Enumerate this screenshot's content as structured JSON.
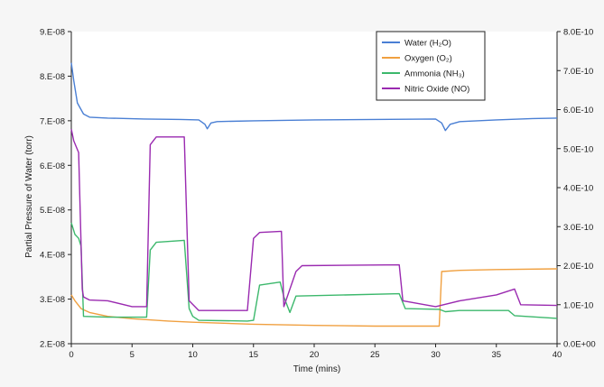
{
  "chart_data": {
    "type": "line",
    "xlabel": "Time (mins)",
    "ylabel": "Partial Pressure of Water (torr)",
    "xlim": [
      0,
      40
    ],
    "ylim_left": [
      2e-08,
      9e-08
    ],
    "ylim_right": [
      0.0,
      8e-10
    ],
    "x_ticks": [
      "0",
      "5",
      "10",
      "15",
      "20",
      "25",
      "30",
      "35",
      "40"
    ],
    "y_left_ticks": [
      "2.E-08",
      "3.E-08",
      "4.E-08",
      "5.E-08",
      "6.E-08",
      "7.E-08",
      "8.E-08",
      "9.E-08"
    ],
    "y_right_ticks": [
      "0.0E+00",
      "1.0E-10",
      "2.0E-10",
      "3.0E-10",
      "4.0E-10",
      "5.0E-10",
      "6.0E-10",
      "7.0E-10",
      "8.0E-10"
    ],
    "grid": false,
    "legend_position": "top-right",
    "series": [
      {
        "name": "Water (H₂O)",
        "color": "#4a7fd4",
        "axis": "left",
        "x": [
          0,
          0.2,
          0.5,
          1,
          1.5,
          3,
          6,
          9,
          10.5,
          11,
          11.2,
          11.5,
          12,
          15,
          20,
          25,
          30,
          30.5,
          30.8,
          31.2,
          32,
          35,
          38,
          40
        ],
        "y": [
          8.3e-08,
          7.9e-08,
          7.4e-08,
          7.15e-08,
          7.08e-08,
          7.06e-08,
          7.04e-08,
          7.03e-08,
          7.02e-08,
          6.92e-08,
          6.82e-08,
          6.95e-08,
          6.98e-08,
          7e-08,
          7.02e-08,
          7.03e-08,
          7.04e-08,
          6.95e-08,
          6.78e-08,
          6.92e-08,
          6.98e-08,
          7.02e-08,
          7.05e-08,
          7.06e-08
        ]
      },
      {
        "name": "Oxygen (O₂)",
        "color": "#f0a040",
        "axis": "right",
        "x": [
          0,
          0.3,
          0.8,
          1.5,
          3,
          5,
          8,
          10,
          12,
          15,
          20,
          25,
          30.3,
          30.5,
          32,
          35,
          40
        ],
        "y": [
          1.25e-10,
          1.1e-10,
          9e-11,
          8e-11,
          7e-11,
          6.4e-11,
          5.8e-11,
          5.5e-11,
          5.3e-11,
          5e-11,
          4.7e-11,
          4.5e-11,
          4.5e-11,
          1.85e-10,
          1.88e-10,
          1.9e-10,
          1.92e-10
        ]
      },
      {
        "name": "Ammonia (NH₃)",
        "color": "#3cb86c",
        "axis": "right",
        "x": [
          0,
          0.3,
          0.6,
          0.8,
          1.0,
          3,
          6.2,
          6.5,
          7.0,
          9.3,
          9.7,
          10,
          10.5,
          14.5,
          15,
          15.5,
          17.2,
          17.5,
          18,
          18.5,
          27,
          27.5,
          30.3,
          30.8,
          32,
          36,
          36.5,
          40
        ],
        "y": [
          3.1e-10,
          2.8e-10,
          2.7e-10,
          2.5e-10,
          7e-11,
          6.8e-11,
          6.8e-11,
          2.4e-10,
          2.6e-10,
          2.65e-10,
          9e-11,
          7e-11,
          6e-11,
          5.8e-11,
          6e-11,
          1.5e-10,
          1.58e-10,
          1.2e-10,
          8e-11,
          1.22e-10,
          1.28e-10,
          9e-11,
          8.8e-11,
          8.2e-11,
          8.5e-11,
          8.5e-11,
          7.2e-11,
          6.5e-11
        ]
      },
      {
        "name": "Nitric Oxide (NO)",
        "color": "#9a2ab0",
        "axis": "right",
        "x": [
          0,
          0.2,
          0.6,
          0.9,
          1.0,
          1.5,
          3,
          5,
          6.2,
          6.5,
          7.0,
          9.3,
          9.7,
          10.5,
          14.5,
          15,
          15.5,
          17.3,
          17.5,
          18.5,
          19,
          27,
          27.3,
          30,
          32,
          35,
          36.5,
          37,
          40
        ],
        "y": [
          5.5e-10,
          5.2e-10,
          4.9e-10,
          1.4e-10,
          1.2e-10,
          1.12e-10,
          1.1e-10,
          9.5e-11,
          9.5e-11,
          5.1e-10,
          5.3e-10,
          5.3e-10,
          1.1e-10,
          8.5e-11,
          8.5e-11,
          2.7e-10,
          2.85e-10,
          2.88e-10,
          9.5e-11,
          1.85e-10,
          2e-10,
          2.02e-10,
          1.1e-10,
          9.5e-11,
          1.1e-10,
          1.25e-10,
          1.4e-10,
          1e-10,
          9.8e-11
        ]
      }
    ]
  }
}
